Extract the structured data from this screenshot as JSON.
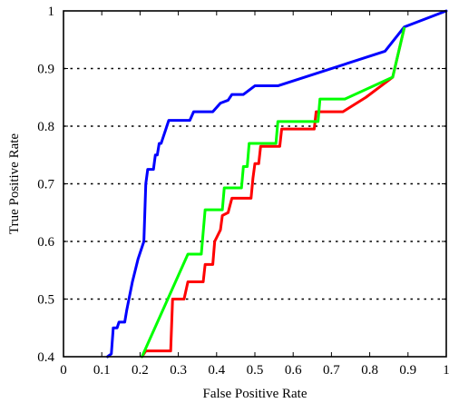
{
  "chart_data": {
    "type": "line",
    "xlabel": "False Positive Rate",
    "ylabel": "True Positive Rate",
    "xlim": [
      0,
      1
    ],
    "ylim": [
      0.4,
      1
    ],
    "xticks": [
      0,
      0.1,
      0.2,
      0.3,
      0.4,
      0.5,
      0.6,
      0.7,
      0.8,
      0.9,
      1
    ],
    "yticks": [
      0.4,
      0.5,
      0.6,
      0.7,
      0.8,
      0.9,
      1
    ],
    "xtick_labels": [
      "0",
      "0.1",
      "0.2",
      "0.3",
      "0.4",
      "0.5",
      "0.6",
      "0.7",
      "0.8",
      "0.9",
      "1"
    ],
    "ytick_labels": [
      "0.4",
      "0.5",
      "0.6",
      "0.7",
      "0.8",
      "0.9",
      "1"
    ],
    "grid": "horizontal-dotted",
    "series": [
      {
        "color": "#0000ff",
        "points": [
          [
            0.115,
            0.4
          ],
          [
            0.125,
            0.405
          ],
          [
            0.13,
            0.45
          ],
          [
            0.14,
            0.45
          ],
          [
            0.145,
            0.46
          ],
          [
            0.16,
            0.46
          ],
          [
            0.165,
            0.48
          ],
          [
            0.18,
            0.53
          ],
          [
            0.195,
            0.57
          ],
          [
            0.21,
            0.6
          ],
          [
            0.215,
            0.7
          ],
          [
            0.22,
            0.725
          ],
          [
            0.235,
            0.725
          ],
          [
            0.24,
            0.75
          ],
          [
            0.245,
            0.75
          ],
          [
            0.25,
            0.77
          ],
          [
            0.255,
            0.77
          ],
          [
            0.26,
            0.78
          ],
          [
            0.265,
            0.79
          ],
          [
            0.27,
            0.8
          ],
          [
            0.275,
            0.81
          ],
          [
            0.33,
            0.81
          ],
          [
            0.34,
            0.825
          ],
          [
            0.39,
            0.825
          ],
          [
            0.41,
            0.84
          ],
          [
            0.43,
            0.845
          ],
          [
            0.44,
            0.855
          ],
          [
            0.47,
            0.855
          ],
          [
            0.5,
            0.87
          ],
          [
            0.56,
            0.87
          ],
          [
            0.84,
            0.93
          ],
          [
            0.89,
            0.972
          ],
          [
            1.0,
            1.0
          ]
        ]
      },
      {
        "color": "#ff0000",
        "points": [
          [
            0.205,
            0.4
          ],
          [
            0.215,
            0.41
          ],
          [
            0.28,
            0.41
          ],
          [
            0.285,
            0.5
          ],
          [
            0.315,
            0.5
          ],
          [
            0.325,
            0.53
          ],
          [
            0.365,
            0.53
          ],
          [
            0.37,
            0.56
          ],
          [
            0.39,
            0.56
          ],
          [
            0.395,
            0.6
          ],
          [
            0.41,
            0.62
          ],
          [
            0.415,
            0.645
          ],
          [
            0.43,
            0.65
          ],
          [
            0.44,
            0.675
          ],
          [
            0.49,
            0.675
          ],
          [
            0.495,
            0.71
          ],
          [
            0.5,
            0.735
          ],
          [
            0.51,
            0.735
          ],
          [
            0.515,
            0.765
          ],
          [
            0.565,
            0.765
          ],
          [
            0.57,
            0.795
          ],
          [
            0.655,
            0.795
          ],
          [
            0.66,
            0.825
          ],
          [
            0.73,
            0.825
          ],
          [
            0.79,
            0.85
          ],
          [
            0.86,
            0.885
          ],
          [
            0.89,
            0.97
          ]
        ]
      },
      {
        "color": "#00ff00",
        "points": [
          [
            0.205,
            0.4
          ],
          [
            0.325,
            0.578
          ],
          [
            0.36,
            0.578
          ],
          [
            0.37,
            0.655
          ],
          [
            0.415,
            0.655
          ],
          [
            0.42,
            0.693
          ],
          [
            0.465,
            0.693
          ],
          [
            0.47,
            0.73
          ],
          [
            0.48,
            0.73
          ],
          [
            0.485,
            0.77
          ],
          [
            0.555,
            0.77
          ],
          [
            0.56,
            0.808
          ],
          [
            0.665,
            0.808
          ],
          [
            0.67,
            0.847
          ],
          [
            0.735,
            0.847
          ],
          [
            0.86,
            0.885
          ],
          [
            0.89,
            0.97
          ]
        ]
      }
    ]
  }
}
